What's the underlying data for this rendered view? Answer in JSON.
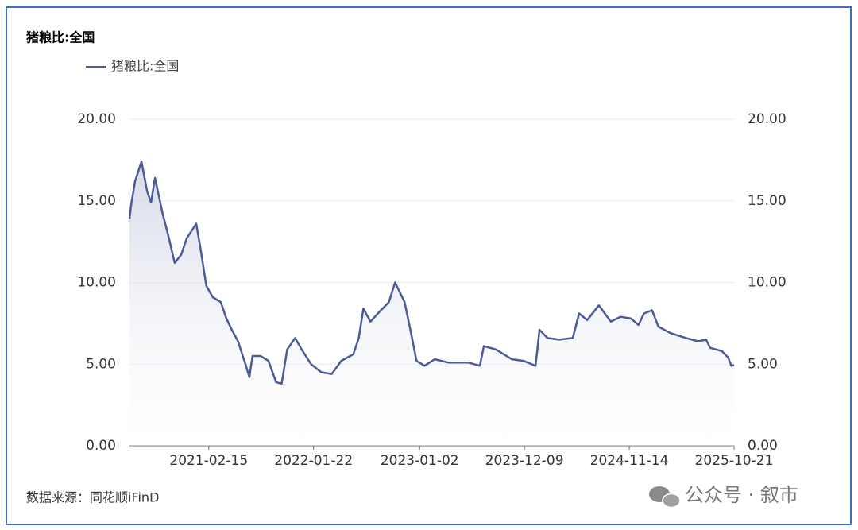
{
  "chart_data": {
    "type": "line",
    "title": "猪粮比:全国",
    "source": "数据来源：同花顺iFinD",
    "watermark": "公众号 · 叙市",
    "legend": "top-left",
    "grid": true,
    "x": [
      "2020-06-02",
      "2020-06-07",
      "2020-06-20",
      "2020-07-11",
      "2020-07-29",
      "2020-08-11",
      "2020-08-24",
      "2020-09-18",
      "2020-10-06",
      "2020-10-27",
      "2020-11-17",
      "2020-12-05",
      "2021-01-05",
      "2021-01-18",
      "2021-02-07",
      "2021-02-28",
      "2021-03-26",
      "2021-04-13",
      "2021-05-01",
      "2021-05-21",
      "2021-06-16",
      "2021-06-27",
      "2021-07-07",
      "2021-08-02",
      "2021-08-28",
      "2021-09-22",
      "2021-10-10",
      "2021-10-28",
      "2021-11-23",
      "2021-12-14",
      "2022-01-14",
      "2022-02-16",
      "2022-03-22",
      "2022-04-22",
      "2022-05-31",
      "2022-06-18",
      "2022-07-03",
      "2022-07-26",
      "2022-08-24",
      "2022-09-24",
      "2022-10-14",
      "2022-11-14",
      "2022-12-05",
      "2022-12-23",
      "2023-01-18",
      "2023-02-20",
      "2023-04-05",
      "2023-06-09",
      "2023-07-17",
      "2023-07-30",
      "2023-09-07",
      "2023-10-29",
      "2023-12-06",
      "2024-01-14",
      "2024-01-27",
      "2024-02-22",
      "2024-03-31",
      "2024-05-14",
      "2024-06-04",
      "2024-06-30",
      "2024-08-07",
      "2024-09-15",
      "2024-10-16",
      "2024-11-19",
      "2024-12-14",
      "2025-01-01",
      "2025-01-27",
      "2025-02-17",
      "2025-03-28",
      "2025-05-18",
      "2025-06-26",
      "2025-07-22",
      "2025-08-04",
      "2025-09-11",
      "2025-10-02",
      "2025-10-12",
      "2025-10-21"
    ],
    "series": [
      {
        "name": "猪粮比:全国",
        "color": "#4c5a96",
        "values": [
          13.9,
          14.7,
          16.2,
          17.4,
          15.6,
          14.9,
          16.4,
          14.2,
          12.9,
          11.2,
          11.7,
          12.7,
          13.6,
          12.2,
          9.8,
          9.1,
          8.8,
          7.8,
          7.1,
          6.4,
          4.9,
          4.2,
          5.5,
          5.5,
          5.2,
          3.9,
          3.8,
          5.9,
          6.6,
          5.9,
          5.0,
          4.5,
          4.4,
          5.2,
          5.6,
          6.6,
          8.4,
          7.6,
          8.2,
          8.8,
          10.0,
          8.8,
          6.9,
          5.2,
          4.9,
          5.3,
          5.1,
          5.1,
          4.9,
          6.1,
          5.9,
          5.3,
          5.2,
          4.9,
          7.1,
          6.6,
          6.5,
          6.6,
          8.1,
          7.7,
          8.6,
          7.6,
          7.9,
          7.8,
          7.4,
          8.1,
          8.3,
          7.3,
          6.9,
          6.6,
          6.4,
          6.5,
          6.0,
          5.8,
          5.4,
          4.9,
          4.95
        ]
      }
    ],
    "xlim": [
      "2020-06-02",
      "2025-10-21"
    ],
    "xticks": [
      "2021-02-15",
      "2022-01-22",
      "2023-01-02",
      "2023-12-09",
      "2024-11-14",
      "2025-10-21"
    ],
    "ylim": [
      0,
      20
    ],
    "yticks": [
      {
        "value": 0,
        "label": "0.00"
      },
      {
        "value": 5,
        "label": "5.00"
      },
      {
        "value": 10,
        "label": "10.00"
      },
      {
        "value": 15,
        "label": "15.00"
      },
      {
        "value": 20,
        "label": "20.00"
      }
    ],
    "y2lim": [
      0,
      20
    ],
    "y2ticks": [
      {
        "value": 0,
        "label": "0.00"
      },
      {
        "value": 5,
        "label": "5.00"
      },
      {
        "value": 10,
        "label": "10.00"
      },
      {
        "value": 15,
        "label": "15.00"
      },
      {
        "value": 20,
        "label": "20.00"
      }
    ]
  }
}
